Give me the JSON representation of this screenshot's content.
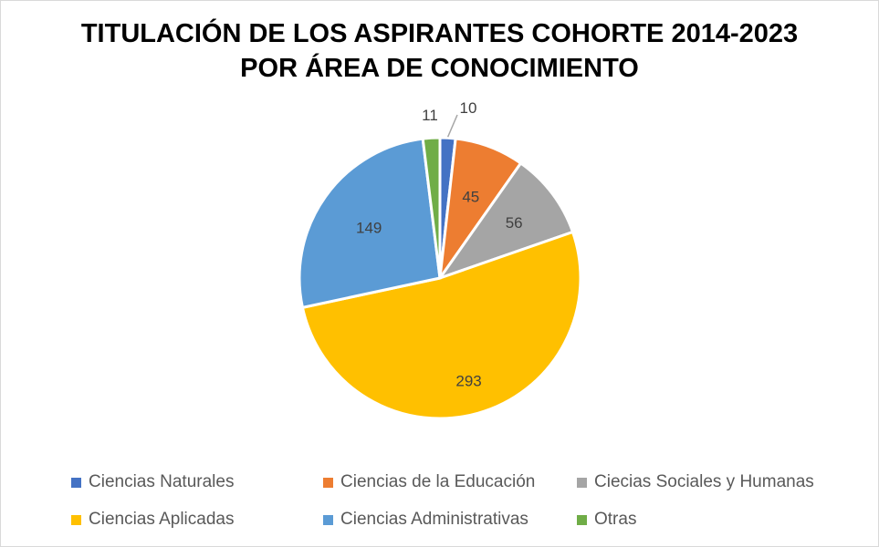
{
  "chart_data": {
    "type": "pie",
    "title": "TITULACIÓN DE LOS ASPIRANTES COHORTE 2014-2023",
    "subtitle": "POR ÁREA DE CONOCIMIENTO",
    "legend_placement": "bottom",
    "slices": [
      {
        "label": "Ciencias Naturales",
        "value": 10,
        "value_label": "10",
        "color": "#4472C4"
      },
      {
        "label": "Ciencias de la Educación",
        "value": 45,
        "value_label": "45",
        "color": "#ED7D31"
      },
      {
        "label": "Ciecias Sociales y Humanas",
        "value": 56,
        "value_label": "56",
        "color": "#A5A5A5"
      },
      {
        "label": "Ciencias Aplicadas",
        "value": 293,
        "value_label": "293",
        "color": "#FFC000"
      },
      {
        "label": "Ciencias Administrativas",
        "value": 149,
        "value_label": "149",
        "color": "#5B9BD5"
      },
      {
        "label": "Otras",
        "value": 11,
        "value_label": "11",
        "color": "#70AD47"
      }
    ]
  }
}
